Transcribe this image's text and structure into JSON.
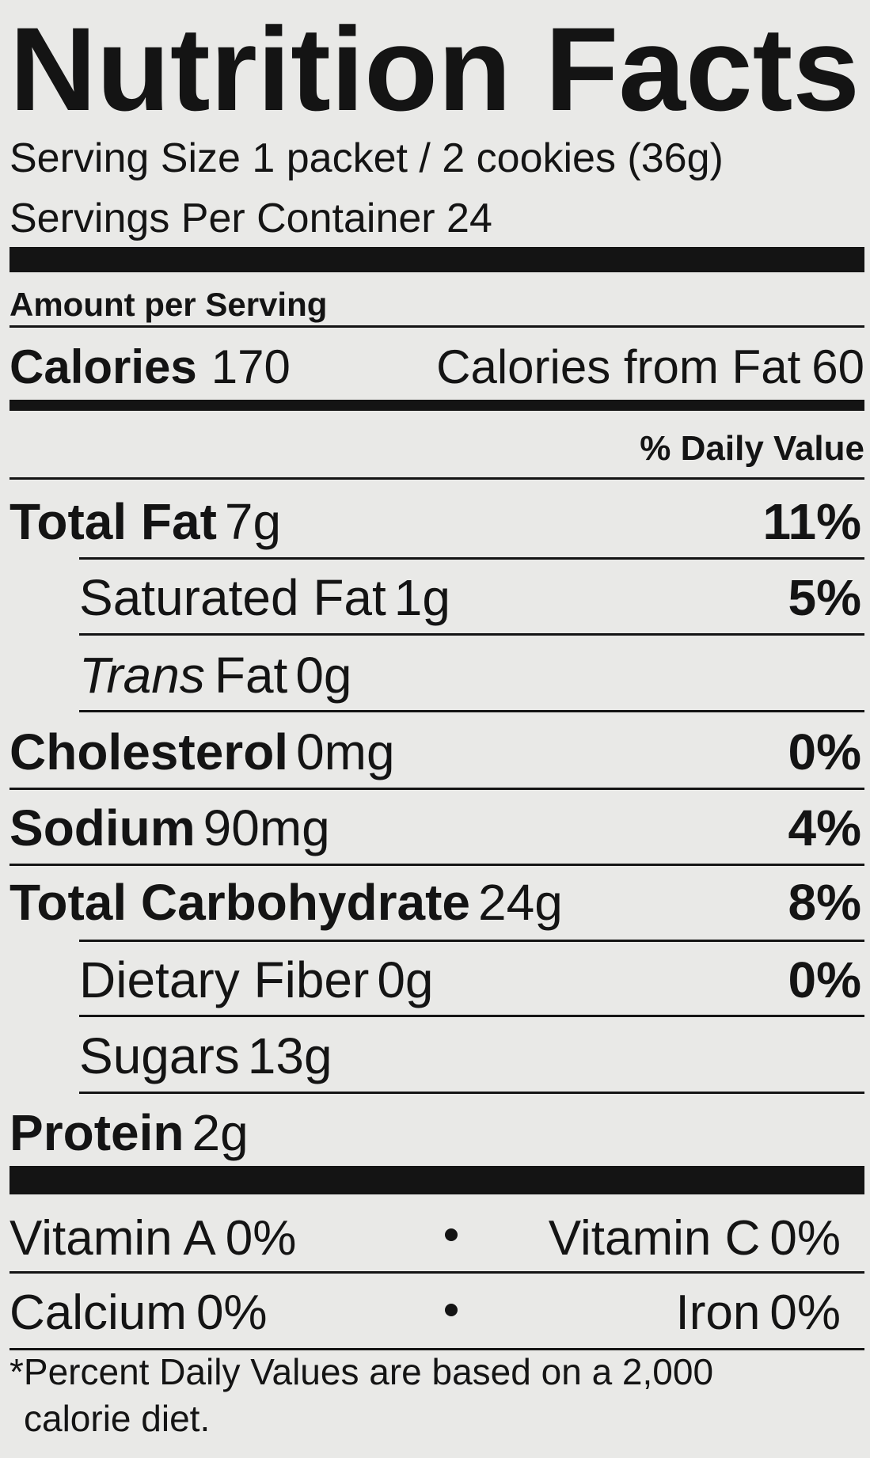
{
  "title": "Nutrition Facts",
  "serving_size": "Serving Size 1 packet / 2 cookies (36g)",
  "servings_per_container": "Servings Per Container 24",
  "amount_per_serving": "Amount per Serving",
  "calories": {
    "label": "Calories",
    "value": "170"
  },
  "calories_from_fat": {
    "label": "Calories from Fat",
    "value": "60"
  },
  "daily_value_header": "% Daily Value",
  "nutrients": [
    {
      "name": "Total Fat",
      "amount": "7g",
      "dv": "11%",
      "bold": true,
      "indent": false
    },
    {
      "name": "Saturated Fat",
      "amount": "1g",
      "dv": "5%",
      "bold": false,
      "indent": true
    },
    {
      "italic": "Trans",
      "name": "Fat",
      "amount": "0g",
      "bold": false,
      "indent": true
    },
    {
      "name": "Cholesterol",
      "amount": "0mg",
      "dv": "0%",
      "bold": true,
      "indent": false
    },
    {
      "name": "Sodium",
      "amount": "90mg",
      "dv": "4%",
      "bold": true,
      "indent": false
    },
    {
      "name": "Total Carbohydrate",
      "amount": "24g",
      "dv": "8%",
      "bold": true,
      "indent": false
    },
    {
      "name": "Dietary Fiber",
      "amount": "0g",
      "dv": "0%",
      "bold": false,
      "indent": true
    },
    {
      "name": "Sugars",
      "amount": "13g",
      "bold": false,
      "indent": true
    },
    {
      "name": "Protein",
      "amount": "2g",
      "bold": true,
      "indent": false
    }
  ],
  "vitamins": [
    [
      {
        "name": "Vitamin A",
        "dv": "0%"
      },
      {
        "name": "Vitamin C",
        "dv": "0%"
      }
    ],
    [
      {
        "name": "Calcium",
        "dv": "0%"
      },
      {
        "name": "Iron",
        "dv": "0%"
      }
    ]
  ],
  "footnote": [
    "*Percent Daily Values are based on a 2,000",
    "calorie diet."
  ]
}
